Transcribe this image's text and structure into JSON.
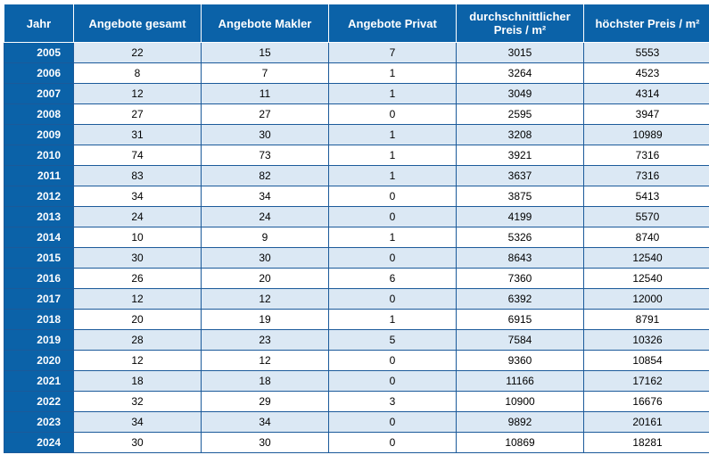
{
  "table": {
    "type": "table",
    "header_bg": "#0b62a8",
    "year_col_bg": "#0b62a8",
    "row_bg_even": "#ffffff",
    "row_bg_odd": "#dbe8f4",
    "border_color": "#1b5a9a",
    "header_text_color": "#ffffff",
    "cell_text_color": "#000000",
    "header_fontsize": 13,
    "cell_fontsize": 12,
    "columns": [
      "Jahr",
      "Angebote gesamt",
      "Angebote Makler",
      "Angebote Privat",
      "durchschnittlicher Preis / m²",
      "höchster Preis / m²"
    ],
    "rows": [
      [
        "2005",
        "22",
        "15",
        "7",
        "3015",
        "5553"
      ],
      [
        "2006",
        "8",
        "7",
        "1",
        "3264",
        "4523"
      ],
      [
        "2007",
        "12",
        "11",
        "1",
        "3049",
        "4314"
      ],
      [
        "2008",
        "27",
        "27",
        "0",
        "2595",
        "3947"
      ],
      [
        "2009",
        "31",
        "30",
        "1",
        "3208",
        "10989"
      ],
      [
        "2010",
        "74",
        "73",
        "1",
        "3921",
        "7316"
      ],
      [
        "2011",
        "83",
        "82",
        "1",
        "3637",
        "7316"
      ],
      [
        "2012",
        "34",
        "34",
        "0",
        "3875",
        "5413"
      ],
      [
        "2013",
        "24",
        "24",
        "0",
        "4199",
        "5570"
      ],
      [
        "2014",
        "10",
        "9",
        "1",
        "5326",
        "8740"
      ],
      [
        "2015",
        "30",
        "30",
        "0",
        "8643",
        "12540"
      ],
      [
        "2016",
        "26",
        "20",
        "6",
        "7360",
        "12540"
      ],
      [
        "2017",
        "12",
        "12",
        "0",
        "6392",
        "12000"
      ],
      [
        "2018",
        "20",
        "19",
        "1",
        "6915",
        "8791"
      ],
      [
        "2019",
        "28",
        "23",
        "5",
        "7584",
        "10326"
      ],
      [
        "2020",
        "12",
        "12",
        "0",
        "9360",
        "10854"
      ],
      [
        "2021",
        "18",
        "18",
        "0",
        "11166",
        "17162"
      ],
      [
        "2022",
        "32",
        "29",
        "3",
        "10900",
        "16676"
      ],
      [
        "2023",
        "34",
        "34",
        "0",
        "9892",
        "20161"
      ],
      [
        "2024",
        "30",
        "30",
        "0",
        "10869",
        "18281"
      ]
    ]
  }
}
